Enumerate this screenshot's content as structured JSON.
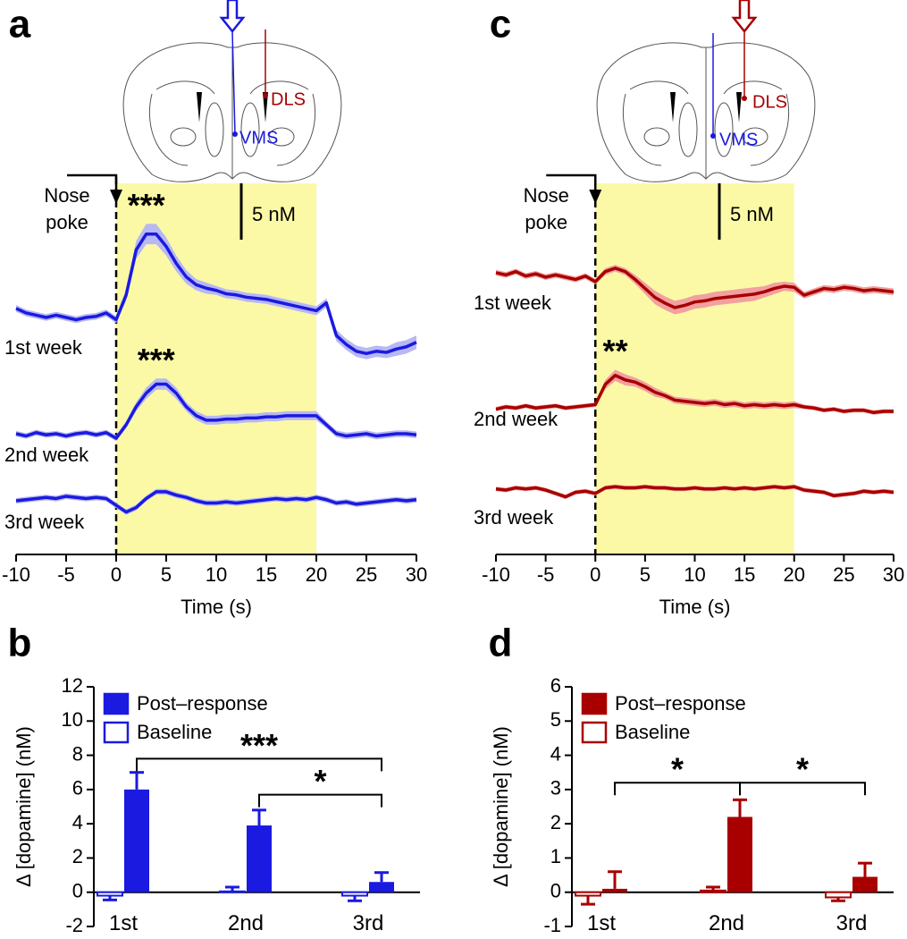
{
  "chart_data": [
    {
      "type": "line",
      "panel_label": "a",
      "inset_labels": [
        "DLS",
        "VMS"
      ],
      "event_label": [
        "Nose",
        "poke"
      ],
      "event_x": 0,
      "highlight": [
        0,
        20
      ],
      "scale_bar": {
        "value": 5,
        "label": "5 nM"
      },
      "x": [
        -10,
        -9,
        -8,
        -7,
        -6,
        -5,
        -4,
        -3,
        -2,
        -1,
        0,
        1,
        2,
        3,
        4,
        5,
        6,
        7,
        8,
        9,
        10,
        11,
        12,
        13,
        14,
        15,
        16,
        17,
        18,
        19,
        20,
        21,
        22,
        23,
        24,
        25,
        26,
        27,
        28,
        29,
        30
      ],
      "xlim": [
        -10,
        30
      ],
      "xticks": [
        -10,
        -5,
        0,
        5,
        10,
        15,
        20,
        25,
        30
      ],
      "xlabel": "Time (s)",
      "series": [
        {
          "name": "1st week",
          "color": "#1a1ae0",
          "band_color": "#b8b8f2",
          "marker_label": "***",
          "values": [
            0.8,
            0.4,
            0.2,
            0,
            0.2,
            0,
            -0.2,
            0,
            0.1,
            0.4,
            -0.2,
            2,
            6,
            7.4,
            7.4,
            6.3,
            4.8,
            3.6,
            2.9,
            2.6,
            2.4,
            2.1,
            2,
            1.8,
            1.7,
            1.6,
            1.4,
            1.2,
            1.0,
            0.8,
            0.6,
            1.3,
            -1.6,
            -2.4,
            -3,
            -3.2,
            -3,
            -3.1,
            -2.8,
            -2.6,
            -2.2
          ],
          "errors": [
            0.3,
            0.3,
            0.3,
            0.3,
            0.3,
            0.3,
            0.3,
            0.3,
            0.3,
            0.3,
            0.3,
            0.5,
            0.8,
            0.9,
            0.9,
            0.8,
            0.7,
            0.6,
            0.5,
            0.5,
            0.4,
            0.4,
            0.4,
            0.4,
            0.4,
            0.4,
            0.4,
            0.4,
            0.4,
            0.4,
            0.4,
            0.4,
            0.5,
            0.5,
            0.5,
            0.5,
            0.5,
            0.5,
            0.6,
            0.6,
            0.6
          ]
        },
        {
          "name": "2nd week",
          "color": "#1a1ae0",
          "band_color": "#b8b8f2",
          "marker_label": "***",
          "values": [
            0,
            -0.2,
            0.1,
            -0.1,
            0,
            -0.2,
            0,
            0.1,
            -0.1,
            0.1,
            -0.4,
            0.8,
            2.4,
            3.6,
            4.4,
            4.4,
            3.6,
            2.4,
            1.6,
            1.2,
            1.2,
            1.3,
            1.3,
            1.4,
            1.4,
            1.5,
            1.5,
            1.6,
            1.6,
            1.6,
            1.6,
            0.8,
            0,
            -0.2,
            -0.1,
            0,
            -0.2,
            -0.1,
            0,
            0,
            -0.1
          ],
          "errors": [
            0.25,
            0.25,
            0.25,
            0.25,
            0.25,
            0.25,
            0.25,
            0.25,
            0.25,
            0.25,
            0.25,
            0.3,
            0.4,
            0.5,
            0.5,
            0.5,
            0.5,
            0.4,
            0.4,
            0.4,
            0.4,
            0.4,
            0.4,
            0.4,
            0.4,
            0.4,
            0.4,
            0.4,
            0.4,
            0.4,
            0.4,
            0.3,
            0.3,
            0.3,
            0.3,
            0.3,
            0.3,
            0.3,
            0.3,
            0.3,
            0.3
          ]
        },
        {
          "name": "3rd week",
          "color": "#1a1ae0",
          "band_color": "#b8b8f2",
          "values": [
            0,
            0.1,
            0.2,
            0.3,
            0.2,
            0.4,
            0.3,
            0.2,
            0.3,
            0.2,
            -0.4,
            -1.0,
            -0.6,
            0.2,
            0.8,
            0.8,
            0.5,
            0.3,
            0,
            -0.2,
            -0.2,
            -0.1,
            -0.2,
            -0.1,
            0,
            0.1,
            0.2,
            0.1,
            0.2,
            0.1,
            0.3,
            0.1,
            -0.2,
            -0.1,
            -0.3,
            -0.2,
            -0.1,
            0,
            0.1,
            0,
            0.1
          ],
          "errors": [
            0.25,
            0.25,
            0.25,
            0.25,
            0.25,
            0.25,
            0.25,
            0.25,
            0.25,
            0.25,
            0.25,
            0.25,
            0.25,
            0.25,
            0.25,
            0.25,
            0.25,
            0.25,
            0.25,
            0.25,
            0.25,
            0.25,
            0.25,
            0.25,
            0.25,
            0.25,
            0.25,
            0.25,
            0.25,
            0.25,
            0.25,
            0.25,
            0.25,
            0.25,
            0.25,
            0.25,
            0.25,
            0.25,
            0.25,
            0.25,
            0.25
          ]
        }
      ]
    },
    {
      "type": "bar",
      "panel_label": "b",
      "ylabel": "Δ [dopamine] (nM)",
      "categories": [
        "1st",
        "2nd",
        "3rd"
      ],
      "ylim": [
        -2,
        12
      ],
      "yticks": [
        -2,
        0,
        2,
        4,
        6,
        8,
        10,
        12
      ],
      "legend": "upper left",
      "series": [
        {
          "name": "Post–response",
          "color": "#1a1ae0",
          "fill": true,
          "values": [
            6.0,
            3.9,
            0.6
          ],
          "errors": [
            1.0,
            0.9,
            0.55
          ]
        },
        {
          "name": "Baseline",
          "color": "#1a1ae0",
          "fill": false,
          "values": [
            -0.2,
            0.05,
            -0.2
          ],
          "errors": [
            0.25,
            0.25,
            0.3
          ]
        }
      ],
      "brackets": [
        {
          "label": "***",
          "between": [
            "1st",
            "3rd"
          ],
          "y": 7.8
        },
        {
          "label": "*",
          "between": [
            "2nd",
            "3rd"
          ],
          "y": 5.7
        }
      ]
    },
    {
      "type": "line",
      "panel_label": "c",
      "inset_labels": [
        "DLS",
        "VMS"
      ],
      "event_label": [
        "Nose",
        "poke"
      ],
      "event_x": 0,
      "highlight": [
        0,
        20
      ],
      "scale_bar": {
        "value": 5,
        "label": "5 nM"
      },
      "x": [
        -10,
        -9,
        -8,
        -7,
        -6,
        -5,
        -4,
        -3,
        -2,
        -1,
        0,
        1,
        2,
        3,
        4,
        5,
        6,
        7,
        8,
        9,
        10,
        11,
        12,
        13,
        14,
        15,
        16,
        17,
        18,
        19,
        20,
        21,
        22,
        23,
        24,
        25,
        26,
        27,
        28,
        29,
        30
      ],
      "xlim": [
        -10,
        30
      ],
      "xticks": [
        -10,
        -5,
        0,
        5,
        10,
        15,
        20,
        25,
        30
      ],
      "xlabel": "Time (s)",
      "series": [
        {
          "name": "1st week",
          "color": "#a80000",
          "band_color": "#f2a0a0",
          "values": [
            0.8,
            0.6,
            0.9,
            0.5,
            0.7,
            0.4,
            0.6,
            0.4,
            0.2,
            0.5,
            0,
            0.9,
            1.2,
            0.9,
            0.2,
            -0.6,
            -1.4,
            -1.9,
            -2.3,
            -2.1,
            -1.8,
            -1.7,
            -1.5,
            -1.4,
            -1.3,
            -1.2,
            -1.1,
            -0.9,
            -0.6,
            -0.4,
            -0.5,
            -1.2,
            -0.9,
            -0.6,
            -0.7,
            -0.5,
            -0.6,
            -0.8,
            -0.7,
            -0.8,
            -0.9
          ],
          "errors": [
            0.25,
            0.25,
            0.25,
            0.25,
            0.25,
            0.25,
            0.25,
            0.25,
            0.25,
            0.25,
            0.25,
            0.3,
            0.3,
            0.3,
            0.4,
            0.5,
            0.6,
            0.6,
            0.6,
            0.6,
            0.6,
            0.6,
            0.6,
            0.6,
            0.6,
            0.6,
            0.6,
            0.5,
            0.5,
            0.4,
            0.4,
            0.3,
            0.3,
            0.3,
            0.3,
            0.3,
            0.3,
            0.3,
            0.3,
            0.3,
            0.3
          ]
        },
        {
          "name": "2nd week",
          "color": "#a80000",
          "band_color": "#f2a0a0",
          "marker_label": "**",
          "values": [
            -0.2,
            0,
            -0.1,
            0.1,
            -0.1,
            0,
            0.1,
            -0.1,
            0,
            0.1,
            0.2,
            2.0,
            2.8,
            2.4,
            2.2,
            1.8,
            1.3,
            1.0,
            0.6,
            0.5,
            0.4,
            0.3,
            0.4,
            0.2,
            0.3,
            0.1,
            0.2,
            0.1,
            0.2,
            0.1,
            0.2,
            0,
            -0.1,
            -0.3,
            -0.2,
            -0.4,
            -0.3,
            -0.3,
            -0.5,
            -0.4,
            -0.4
          ],
          "errors": [
            0.2,
            0.2,
            0.2,
            0.2,
            0.2,
            0.2,
            0.2,
            0.2,
            0.2,
            0.2,
            0.2,
            0.4,
            0.5,
            0.5,
            0.4,
            0.4,
            0.4,
            0.3,
            0.3,
            0.3,
            0.3,
            0.3,
            0.3,
            0.3,
            0.3,
            0.3,
            0.3,
            0.3,
            0.3,
            0.3,
            0.3,
            0.2,
            0.2,
            0.2,
            0.2,
            0.2,
            0.2,
            0.2,
            0.2,
            0.2,
            0.2
          ]
        },
        {
          "name": "3rd week",
          "color": "#a80000",
          "band_color": "#f2a0a0",
          "values": [
            0.1,
            0,
            0.2,
            0.1,
            0.2,
            0,
            -0.3,
            -0.6,
            -0.2,
            -0.1,
            -0.3,
            0.2,
            0.3,
            0.2,
            0.2,
            0.3,
            0.2,
            0.2,
            0.1,
            0.1,
            0.2,
            0.1,
            0.1,
            0.2,
            0.1,
            0.2,
            0.1,
            0.2,
            0.3,
            0.2,
            0.3,
            0,
            -0.1,
            -0.2,
            -0.5,
            -0.4,
            -0.3,
            -0.1,
            -0.2,
            -0.1,
            -0.2
          ],
          "errors": [
            0.2,
            0.2,
            0.2,
            0.2,
            0.2,
            0.2,
            0.2,
            0.2,
            0.2,
            0.2,
            0.2,
            0.2,
            0.2,
            0.2,
            0.2,
            0.2,
            0.2,
            0.2,
            0.2,
            0.2,
            0.2,
            0.2,
            0.2,
            0.2,
            0.2,
            0.2,
            0.2,
            0.2,
            0.2,
            0.2,
            0.2,
            0.2,
            0.2,
            0.2,
            0.2,
            0.2,
            0.2,
            0.2,
            0.2,
            0.2,
            0.2
          ]
        }
      ]
    },
    {
      "type": "bar",
      "panel_label": "d",
      "ylabel": "Δ [dopamine] (nM)",
      "categories": [
        "1st",
        "2nd",
        "3rd"
      ],
      "ylim": [
        -1,
        6
      ],
      "yticks": [
        -1,
        0,
        1,
        2,
        3,
        4,
        5,
        6
      ],
      "legend": "upper left",
      "series": [
        {
          "name": "Post–response",
          "color": "#a80000",
          "fill": true,
          "values": [
            0.1,
            2.2,
            0.45
          ],
          "errors": [
            0.5,
            0.5,
            0.4
          ]
        },
        {
          "name": "Baseline",
          "color": "#a80000",
          "fill": false,
          "values": [
            -0.1,
            0.05,
            -0.15
          ],
          "errors": [
            0.25,
            0.1,
            0.1
          ]
        }
      ],
      "brackets": [
        {
          "label": "*",
          "between": [
            "1st",
            "2nd"
          ],
          "y": 3.2
        },
        {
          "label": "*",
          "between": [
            "2nd",
            "3rd"
          ],
          "y": 3.2
        }
      ]
    }
  ]
}
